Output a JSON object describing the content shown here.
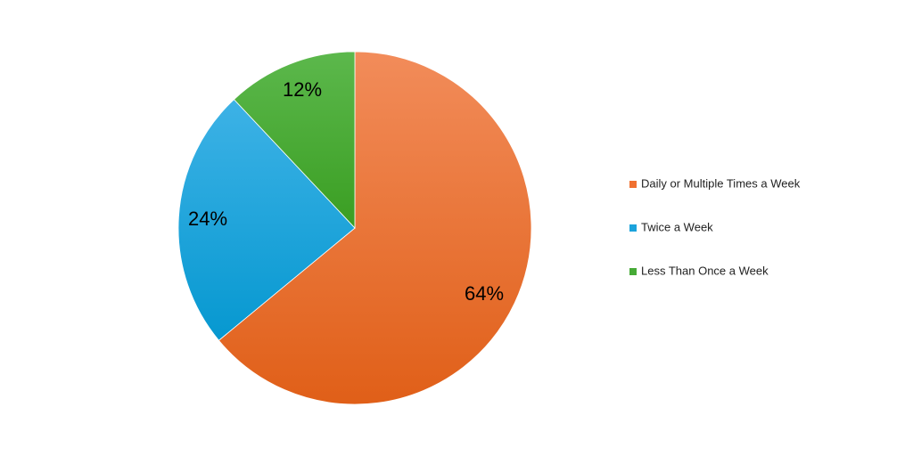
{
  "chart_data": {
    "type": "pie",
    "title": "",
    "legend_position": "right",
    "slices": [
      {
        "label": "Daily or Multiple Times a Week",
        "value": 64,
        "display": "64%",
        "color": "#F07030",
        "color_light": "#F28C5A",
        "color_dark": "#E05F18"
      },
      {
        "label": "Twice a Week",
        "value": 24,
        "display": "24%",
        "color": "#1BA3DC",
        "color_light": "#3DB2E6",
        "color_dark": "#0698D0"
      },
      {
        "label": "Less Than Once a Week",
        "value": 12,
        "display": "12%",
        "color": "#46AA36",
        "color_light": "#5CB84C",
        "color_dark": "#3A9E22"
      }
    ]
  }
}
